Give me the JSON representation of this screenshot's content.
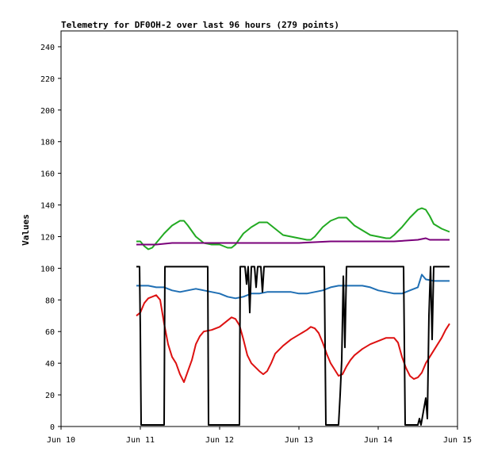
{
  "chart_data": {
    "type": "line",
    "title": "Telemetry for DF0OH-2 over last 96 hours (279 points)",
    "xlabel": "",
    "ylabel": "Values",
    "xlim": [
      0,
      5
    ],
    "ylim": [
      0,
      250
    ],
    "yticks": [
      0,
      20,
      40,
      60,
      80,
      100,
      120,
      140,
      160,
      180,
      200,
      220,
      240
    ],
    "xticks": [
      {
        "x": 0,
        "label": "Jun 10"
      },
      {
        "x": 1,
        "label": "Jun 11"
      },
      {
        "x": 2,
        "label": "Jun 12"
      },
      {
        "x": 3,
        "label": "Jun 13"
      },
      {
        "x": 4,
        "label": "Jun 14"
      },
      {
        "x": 5,
        "label": "Jun 15"
      }
    ],
    "grid": false,
    "legend": "none",
    "series": [
      {
        "color": "#22aa22",
        "points": [
          [
            0.95,
            117
          ],
          [
            1.0,
            117
          ],
          [
            1.05,
            114
          ],
          [
            1.1,
            112
          ],
          [
            1.15,
            113
          ],
          [
            1.2,
            116
          ],
          [
            1.3,
            122
          ],
          [
            1.4,
            127
          ],
          [
            1.5,
            130
          ],
          [
            1.55,
            130
          ],
          [
            1.6,
            127
          ],
          [
            1.7,
            120
          ],
          [
            1.8,
            116
          ],
          [
            1.9,
            115
          ],
          [
            2.0,
            115
          ],
          [
            2.05,
            114
          ],
          [
            2.1,
            113
          ],
          [
            2.15,
            113
          ],
          [
            2.2,
            115
          ],
          [
            2.3,
            122
          ],
          [
            2.4,
            126
          ],
          [
            2.5,
            129
          ],
          [
            2.6,
            129
          ],
          [
            2.7,
            125
          ],
          [
            2.8,
            121
          ],
          [
            2.9,
            120
          ],
          [
            3.0,
            119
          ],
          [
            3.1,
            118
          ],
          [
            3.15,
            118
          ],
          [
            3.2,
            120
          ],
          [
            3.3,
            126
          ],
          [
            3.4,
            130
          ],
          [
            3.5,
            132
          ],
          [
            3.6,
            132
          ],
          [
            3.7,
            127
          ],
          [
            3.8,
            124
          ],
          [
            3.9,
            121
          ],
          [
            4.0,
            120
          ],
          [
            4.1,
            119
          ],
          [
            4.15,
            119
          ],
          [
            4.2,
            121
          ],
          [
            4.3,
            126
          ],
          [
            4.4,
            132
          ],
          [
            4.5,
            137
          ],
          [
            4.55,
            138
          ],
          [
            4.6,
            137
          ],
          [
            4.65,
            133
          ],
          [
            4.7,
            128
          ],
          [
            4.8,
            125
          ],
          [
            4.9,
            123
          ]
        ]
      },
      {
        "color": "#7a007a",
        "points": [
          [
            0.95,
            115
          ],
          [
            1.1,
            115
          ],
          [
            1.2,
            115
          ],
          [
            1.4,
            116
          ],
          [
            1.6,
            116
          ],
          [
            2.0,
            116
          ],
          [
            2.4,
            116
          ],
          [
            2.8,
            116
          ],
          [
            3.0,
            116
          ],
          [
            3.4,
            117
          ],
          [
            3.8,
            117
          ],
          [
            4.2,
            117
          ],
          [
            4.5,
            118
          ],
          [
            4.6,
            119
          ],
          [
            4.65,
            118
          ],
          [
            4.9,
            118
          ]
        ]
      },
      {
        "color": "#1f6fb4",
        "points": [
          [
            0.95,
            89
          ],
          [
            1.1,
            89
          ],
          [
            1.2,
            88
          ],
          [
            1.3,
            88
          ],
          [
            1.4,
            86
          ],
          [
            1.5,
            85
          ],
          [
            1.6,
            86
          ],
          [
            1.7,
            87
          ],
          [
            1.8,
            86
          ],
          [
            1.9,
            85
          ],
          [
            2.0,
            84
          ],
          [
            2.1,
            82
          ],
          [
            2.2,
            81
          ],
          [
            2.3,
            82
          ],
          [
            2.4,
            84
          ],
          [
            2.5,
            84
          ],
          [
            2.6,
            85
          ],
          [
            2.7,
            85
          ],
          [
            2.8,
            85
          ],
          [
            2.9,
            85
          ],
          [
            3.0,
            84
          ],
          [
            3.1,
            84
          ],
          [
            3.2,
            85
          ],
          [
            3.3,
            86
          ],
          [
            3.4,
            88
          ],
          [
            3.5,
            89
          ],
          [
            3.6,
            89
          ],
          [
            3.8,
            89
          ],
          [
            3.9,
            88
          ],
          [
            4.0,
            86
          ],
          [
            4.1,
            85
          ],
          [
            4.2,
            84
          ],
          [
            4.3,
            84
          ],
          [
            4.4,
            86
          ],
          [
            4.5,
            88
          ],
          [
            4.55,
            96
          ],
          [
            4.6,
            93
          ],
          [
            4.7,
            92
          ],
          [
            4.9,
            92
          ]
        ]
      },
      {
        "color": "#dd1111",
        "points": [
          [
            0.95,
            70
          ],
          [
            1.0,
            72
          ],
          [
            1.05,
            78
          ],
          [
            1.1,
            81
          ],
          [
            1.2,
            83
          ],
          [
            1.25,
            80
          ],
          [
            1.3,
            65
          ],
          [
            1.35,
            52
          ],
          [
            1.4,
            44
          ],
          [
            1.45,
            40
          ],
          [
            1.5,
            33
          ],
          [
            1.55,
            28
          ],
          [
            1.6,
            35
          ],
          [
            1.65,
            42
          ],
          [
            1.7,
            52
          ],
          [
            1.75,
            57
          ],
          [
            1.8,
            60
          ],
          [
            1.9,
            61
          ],
          [
            2.0,
            63
          ],
          [
            2.05,
            65
          ],
          [
            2.1,
            67
          ],
          [
            2.15,
            69
          ],
          [
            2.2,
            68
          ],
          [
            2.25,
            64
          ],
          [
            2.3,
            55
          ],
          [
            2.35,
            45
          ],
          [
            2.4,
            40
          ],
          [
            2.5,
            35
          ],
          [
            2.55,
            33
          ],
          [
            2.6,
            35
          ],
          [
            2.65,
            40
          ],
          [
            2.7,
            46
          ],
          [
            2.8,
            51
          ],
          [
            2.9,
            55
          ],
          [
            3.0,
            58
          ],
          [
            3.1,
            61
          ],
          [
            3.15,
            63
          ],
          [
            3.2,
            62
          ],
          [
            3.25,
            59
          ],
          [
            3.3,
            53
          ],
          [
            3.35,
            46
          ],
          [
            3.4,
            40
          ],
          [
            3.45,
            36
          ],
          [
            3.5,
            32
          ],
          [
            3.55,
            33
          ],
          [
            3.6,
            38
          ],
          [
            3.65,
            42
          ],
          [
            3.7,
            45
          ],
          [
            3.8,
            49
          ],
          [
            3.9,
            52
          ],
          [
            4.0,
            54
          ],
          [
            4.1,
            56
          ],
          [
            4.2,
            56
          ],
          [
            4.25,
            53
          ],
          [
            4.3,
            44
          ],
          [
            4.35,
            37
          ],
          [
            4.4,
            32
          ],
          [
            4.45,
            30
          ],
          [
            4.5,
            31
          ],
          [
            4.55,
            34
          ],
          [
            4.6,
            40
          ],
          [
            4.7,
            48
          ],
          [
            4.8,
            56
          ],
          [
            4.85,
            61
          ],
          [
            4.9,
            65
          ]
        ]
      },
      {
        "color": "#000000",
        "points": [
          [
            0.95,
            101
          ],
          [
            0.99,
            101
          ],
          [
            1.0,
            60
          ],
          [
            1.01,
            1
          ],
          [
            1.3,
            1
          ],
          [
            1.31,
            101
          ],
          [
            1.85,
            101
          ],
          [
            1.86,
            1
          ],
          [
            2.25,
            1
          ],
          [
            2.26,
            101
          ],
          [
            2.32,
            101
          ],
          [
            2.34,
            90
          ],
          [
            2.36,
            101
          ],
          [
            2.38,
            72
          ],
          [
            2.4,
            101
          ],
          [
            2.44,
            101
          ],
          [
            2.46,
            88
          ],
          [
            2.48,
            101
          ],
          [
            2.52,
            101
          ],
          [
            2.54,
            85
          ],
          [
            2.56,
            101
          ],
          [
            2.58,
            101
          ],
          [
            3.32,
            101
          ],
          [
            3.34,
            1
          ],
          [
            3.5,
            1
          ],
          [
            3.52,
            20
          ],
          [
            3.54,
            42
          ],
          [
            3.56,
            95
          ],
          [
            3.58,
            50
          ],
          [
            3.6,
            101
          ],
          [
            4.32,
            101
          ],
          [
            4.34,
            1
          ],
          [
            4.5,
            1
          ],
          [
            4.52,
            5
          ],
          [
            4.54,
            1
          ],
          [
            4.6,
            18
          ],
          [
            4.62,
            5
          ],
          [
            4.64,
            70
          ],
          [
            4.66,
            101
          ],
          [
            4.68,
            55
          ],
          [
            4.7,
            101
          ],
          [
            4.9,
            101
          ]
        ]
      }
    ]
  }
}
